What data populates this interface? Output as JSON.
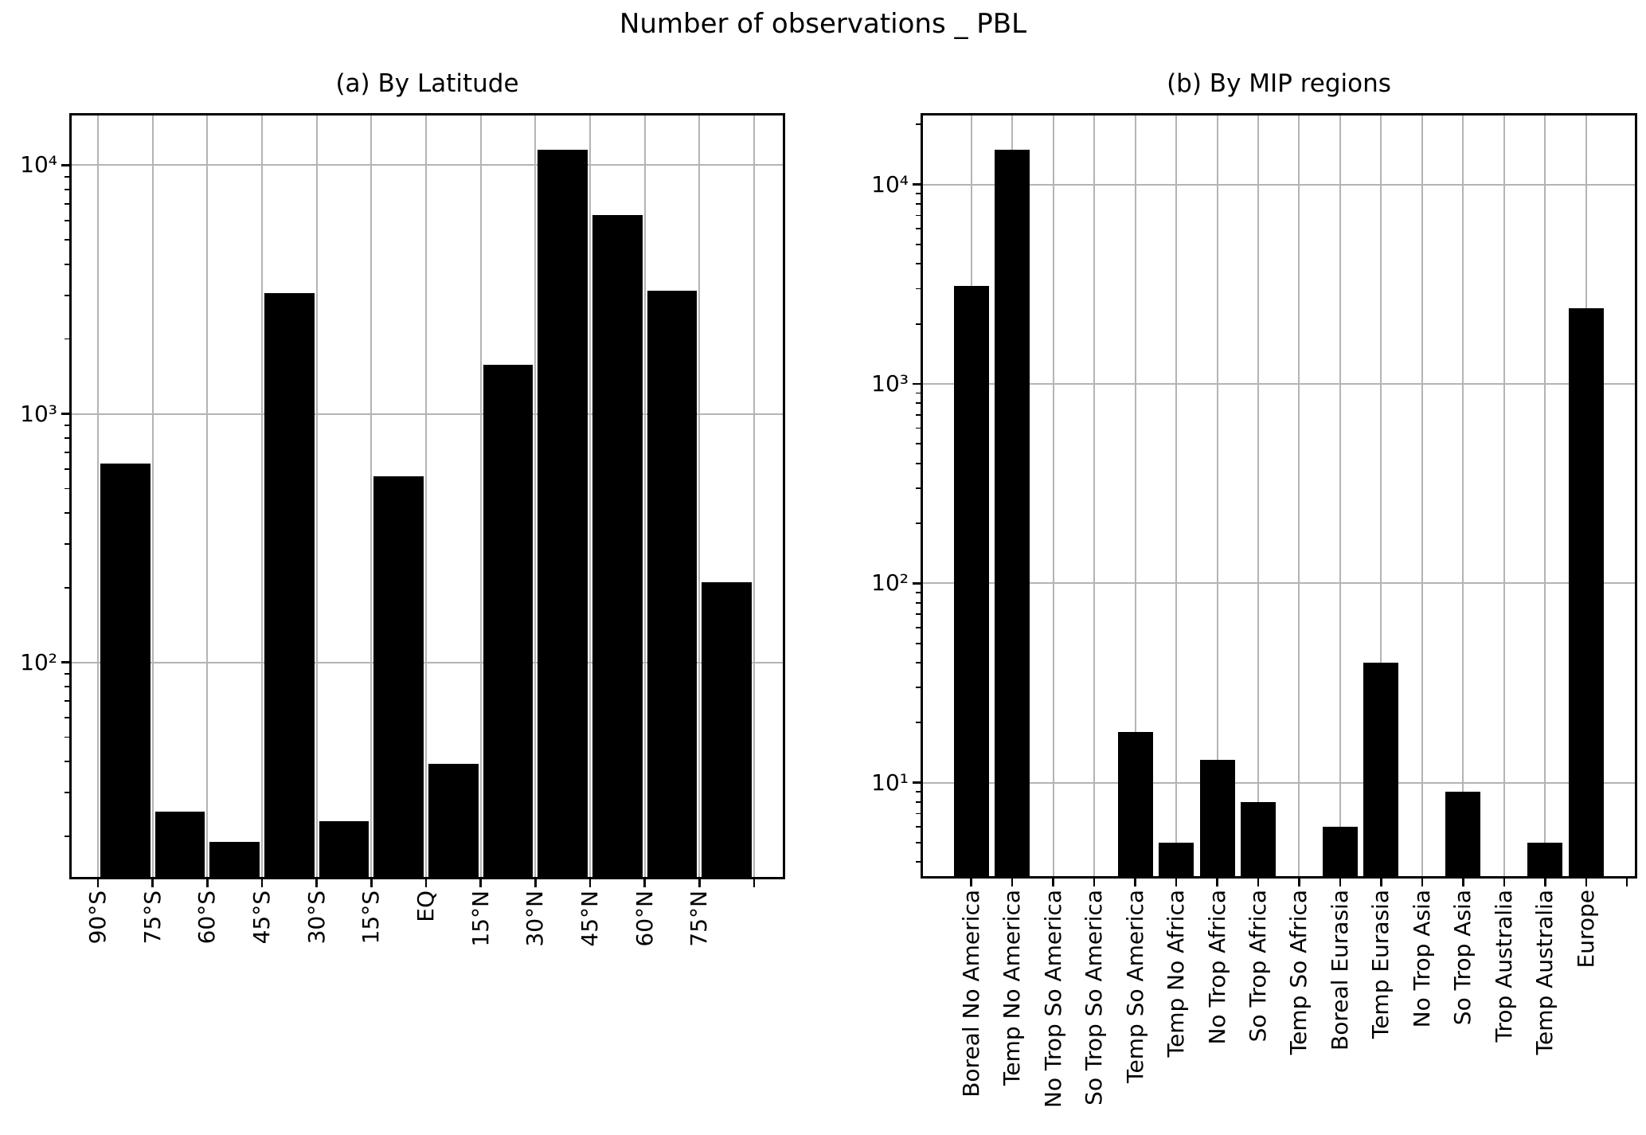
{
  "figure": {
    "suptitle": "Number of observations _ PBL",
    "background": "#ffffff",
    "text_color": "#000000",
    "grid_color": "#b4b4b4",
    "bar_color": "#000000"
  },
  "chart_data": [
    {
      "id": "by-latitude",
      "type": "bar",
      "title": "(a) By Latitude",
      "yscale": "log",
      "grid": true,
      "xlabel": "",
      "ylabel": "",
      "tick_alignment": "edge",
      "ylim": [
        13.7,
        15850
      ],
      "yticks": [
        {
          "label": "10⁴",
          "value": 10000
        },
        {
          "label": "10³",
          "value": 1000
        },
        {
          "label": "10²",
          "value": 100
        }
      ],
      "categories": [
        "90°S",
        "75°S",
        "60°S",
        "45°S",
        "30°S",
        "15°S",
        "EQ",
        "15°N",
        "30°N",
        "45°N",
        "60°N",
        "75°N"
      ],
      "values": [
        630,
        25,
        19,
        3050,
        23,
        560,
        39,
        1570,
        11500,
        6300,
        3120,
        210
      ]
    },
    {
      "id": "by-mip-regions",
      "type": "bar",
      "title": "(b) By MIP regions",
      "yscale": "log",
      "grid": true,
      "xlabel": "",
      "ylabel": "",
      "tick_alignment": "center",
      "ylim": [
        3.4,
        22200
      ],
      "yticks": [
        {
          "label": "10⁴",
          "value": 10000
        },
        {
          "label": "10³",
          "value": 1000
        },
        {
          "label": "10²",
          "value": 100
        },
        {
          "label": "10¹",
          "value": 10
        }
      ],
      "categories": [
        "Boreal No America",
        "Temp No America",
        "No Trop So America",
        "So Trop So America",
        "Temp So America",
        "Temp No Africa",
        "No Trop Africa",
        "So Trop Africa",
        "Temp So Africa",
        "Boreal Eurasia",
        "Temp Eurasia",
        "No Trop Asia",
        "So Trop Asia",
        "Trop Australia",
        "Temp Australia",
        "Europe"
      ],
      "values": [
        3100,
        15000,
        0,
        0,
        18,
        5,
        13,
        8,
        0,
        6,
        40,
        0,
        9,
        0,
        5,
        2400
      ]
    }
  ]
}
